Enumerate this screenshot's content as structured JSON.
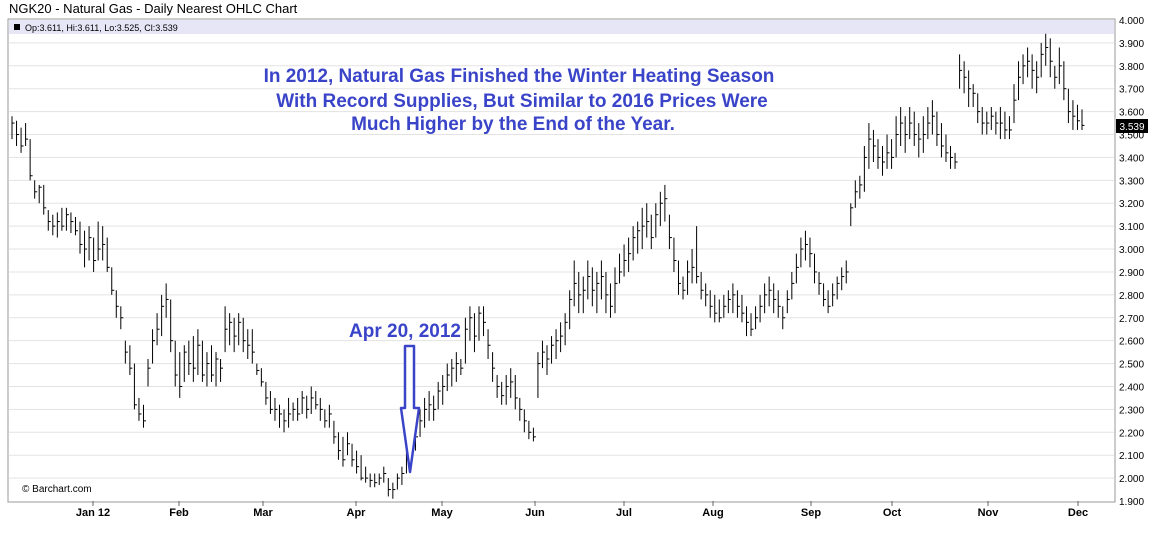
{
  "title": "NGK20 - Natural Gas - Daily Nearest OHLC Chart",
  "ohlc_line": {
    "text": "Op:3.611, Hi:3.611, Lo:3.525, Cl:3.539",
    "marker_icon": "black-square-icon"
  },
  "annotation": {
    "lines": [
      "In 2012, Natural Gas Finished the Winter Heating Season",
      "With Record Supplies, But Similar to 2016 Prices Were",
      "Much Higher by the End of the Year."
    ],
    "color": "#3a44c8"
  },
  "arrow_label": "Apr 20, 2012",
  "arrow_icon": "down-arrow-icon",
  "watermark": "© Barchart.com",
  "last_price_label": "3.539",
  "colors": {
    "bar": "#000000",
    "grid": "#e3e3e3",
    "header_band": "#e6e6f6",
    "annotation": "#3a44c8"
  },
  "chart_data": {
    "type": "ohlc",
    "ylim": [
      1.9,
      4.0
    ],
    "yticks": [
      "1.900",
      "2.000",
      "2.100",
      "2.200",
      "2.300",
      "2.400",
      "2.500",
      "2.600",
      "2.700",
      "2.800",
      "2.900",
      "3.000",
      "3.100",
      "3.200",
      "3.300",
      "3.400",
      "3.500",
      "3.600",
      "3.700",
      "3.800",
      "3.900",
      "4.000"
    ],
    "xlabels": [
      "Jan 12",
      "Feb",
      "Mar",
      "Apr",
      "May",
      "Jun",
      "Jul",
      "Aug",
      "Sep",
      "Oct",
      "Nov",
      "Dec"
    ],
    "bars": [
      [
        3.58,
        3.48,
        3.55
      ],
      [
        3.56,
        3.45,
        3.5
      ],
      [
        3.53,
        3.42,
        3.45
      ],
      [
        3.55,
        3.45,
        3.48
      ],
      [
        3.48,
        3.3,
        3.32
      ],
      [
        3.3,
        3.22,
        3.25
      ],
      [
        3.28,
        3.2,
        3.27
      ],
      [
        3.28,
        3.15,
        3.18
      ],
      [
        3.17,
        3.08,
        3.12
      ],
      [
        3.15,
        3.06,
        3.1
      ],
      [
        3.16,
        3.05,
        3.12
      ],
      [
        3.18,
        3.08,
        3.1
      ],
      [
        3.18,
        3.08,
        3.15
      ],
      [
        3.16,
        3.07,
        3.12
      ],
      [
        3.14,
        3.06,
        3.08
      ],
      [
        3.12,
        2.98,
        3.02
      ],
      [
        3.08,
        2.92,
        3.0
      ],
      [
        3.1,
        2.95,
        3.05
      ],
      [
        3.05,
        2.9,
        2.95
      ],
      [
        3.12,
        2.95,
        3.0
      ],
      [
        3.1,
        2.95,
        3.02
      ],
      [
        3.05,
        2.9,
        2.92
      ],
      [
        2.92,
        2.8,
        2.82
      ],
      [
        2.82,
        2.7,
        2.75
      ],
      [
        2.75,
        2.65,
        2.7
      ],
      [
        2.6,
        2.5,
        2.55
      ],
      [
        2.58,
        2.45,
        2.48
      ],
      [
        2.5,
        2.3,
        2.32
      ],
      [
        2.35,
        2.25,
        2.28
      ],
      [
        2.32,
        2.22,
        2.25
      ],
      [
        2.52,
        2.4,
        2.48
      ],
      [
        2.65,
        2.5,
        2.6
      ],
      [
        2.72,
        2.58,
        2.65
      ],
      [
        2.8,
        2.62,
        2.75
      ],
      [
        2.85,
        2.7,
        2.78
      ],
      [
        2.78,
        2.55,
        2.6
      ],
      [
        2.6,
        2.4,
        2.45
      ],
      [
        2.55,
        2.35,
        2.4
      ],
      [
        2.58,
        2.42,
        2.55
      ],
      [
        2.6,
        2.45,
        2.5
      ],
      [
        2.62,
        2.42,
        2.48
      ],
      [
        2.65,
        2.45,
        2.58
      ],
      [
        2.6,
        2.42,
        2.45
      ],
      [
        2.55,
        2.4,
        2.5
      ],
      [
        2.58,
        2.42,
        2.45
      ],
      [
        2.55,
        2.4,
        2.52
      ],
      [
        2.52,
        2.42,
        2.48
      ],
      [
        2.75,
        2.55,
        2.65
      ],
      [
        2.72,
        2.58,
        2.68
      ],
      [
        2.7,
        2.55,
        2.62
      ],
      [
        2.72,
        2.58,
        2.68
      ],
      [
        2.7,
        2.55,
        2.6
      ],
      [
        2.65,
        2.52,
        2.58
      ],
      [
        2.65,
        2.5,
        2.55
      ],
      [
        2.5,
        2.45,
        2.47
      ],
      [
        2.48,
        2.4,
        2.42
      ],
      [
        2.42,
        2.32,
        2.35
      ],
      [
        2.38,
        2.28,
        2.3
      ],
      [
        2.35,
        2.25,
        2.3
      ],
      [
        2.32,
        2.22,
        2.28
      ],
      [
        2.3,
        2.2,
        2.25
      ],
      [
        2.35,
        2.22,
        2.28
      ],
      [
        2.33,
        2.25,
        2.3
      ],
      [
        2.35,
        2.25,
        2.28
      ],
      [
        2.38,
        2.28,
        2.35
      ],
      [
        2.36,
        2.26,
        2.3
      ],
      [
        2.4,
        2.28,
        2.35
      ],
      [
        2.38,
        2.3,
        2.32
      ],
      [
        2.35,
        2.25,
        2.3
      ],
      [
        2.3,
        2.22,
        2.25
      ],
      [
        2.32,
        2.22,
        2.28
      ],
      [
        2.25,
        2.15,
        2.18
      ],
      [
        2.2,
        2.08,
        2.12
      ],
      [
        2.18,
        2.05,
        2.08
      ],
      [
        2.2,
        2.1,
        2.15
      ],
      [
        2.15,
        2.05,
        2.08
      ],
      [
        2.12,
        2.02,
        2.05
      ],
      [
        2.1,
        1.99,
        2.0
      ],
      [
        2.05,
        1.98,
        2.0
      ],
      [
        2.02,
        1.96,
        1.99
      ],
      [
        2.02,
        1.96,
        1.98
      ],
      [
        2.02,
        1.97,
        2.0
      ],
      [
        2.05,
        1.98,
        2.02
      ],
      [
        2.0,
        1.92,
        1.95
      ],
      [
        1.98,
        1.91,
        1.95
      ],
      [
        2.02,
        1.95,
        2.0
      ],
      [
        2.05,
        1.97,
        2.02
      ],
      [
        2.12,
        2.02,
        2.08
      ],
      [
        2.28,
        2.1,
        2.2
      ],
      [
        2.25,
        2.12,
        2.18
      ],
      [
        2.3,
        2.18,
        2.25
      ],
      [
        2.35,
        2.22,
        2.3
      ],
      [
        2.38,
        2.25,
        2.32
      ],
      [
        2.36,
        2.25,
        2.3
      ],
      [
        2.42,
        2.3,
        2.38
      ],
      [
        2.45,
        2.32,
        2.4
      ],
      [
        2.5,
        2.38,
        2.45
      ],
      [
        2.52,
        2.4,
        2.48
      ],
      [
        2.55,
        2.42,
        2.5
      ],
      [
        2.52,
        2.45,
        2.48
      ],
      [
        2.7,
        2.5,
        2.65
      ],
      [
        2.75,
        2.6,
        2.7
      ],
      [
        2.72,
        2.55,
        2.62
      ],
      [
        2.75,
        2.6,
        2.72
      ],
      [
        2.75,
        2.62,
        2.68
      ],
      [
        2.65,
        2.52,
        2.58
      ],
      [
        2.55,
        2.42,
        2.48
      ],
      [
        2.45,
        2.35,
        2.4
      ],
      [
        2.42,
        2.32,
        2.36
      ],
      [
        2.45,
        2.32,
        2.4
      ],
      [
        2.48,
        2.35,
        2.42
      ],
      [
        2.45,
        2.3,
        2.35
      ],
      [
        2.35,
        2.25,
        2.3
      ],
      [
        2.3,
        2.2,
        2.25
      ],
      [
        2.25,
        2.17,
        2.2
      ],
      [
        2.22,
        2.16,
        2.18
      ],
      [
        2.55,
        2.35,
        2.5
      ],
      [
        2.6,
        2.48,
        2.55
      ],
      [
        2.58,
        2.45,
        2.52
      ],
      [
        2.62,
        2.5,
        2.58
      ],
      [
        2.65,
        2.52,
        2.6
      ],
      [
        2.68,
        2.55,
        2.62
      ],
      [
        2.72,
        2.58,
        2.68
      ],
      [
        2.82,
        2.65,
        2.78
      ],
      [
        2.95,
        2.75,
        2.85
      ],
      [
        2.9,
        2.72,
        2.8
      ],
      [
        2.88,
        2.72,
        2.82
      ],
      [
        2.95,
        2.78,
        2.88
      ],
      [
        2.92,
        2.75,
        2.82
      ],
      [
        2.9,
        2.72,
        2.85
      ],
      [
        2.95,
        2.78,
        2.88
      ],
      [
        2.9,
        2.72,
        2.8
      ],
      [
        2.85,
        2.7,
        2.75
      ],
      [
        2.92,
        2.72,
        2.85
      ],
      [
        2.98,
        2.85,
        2.9
      ],
      [
        3.02,
        2.88,
        2.95
      ],
      [
        3.05,
        2.9,
        2.98
      ],
      [
        3.1,
        2.95,
        3.05
      ],
      [
        3.12,
        2.98,
        3.08
      ],
      [
        3.18,
        3.0,
        3.1
      ],
      [
        3.2,
        3.05,
        3.12
      ],
      [
        3.15,
        3.0,
        3.05
      ],
      [
        3.2,
        3.05,
        3.15
      ],
      [
        3.25,
        3.1,
        3.2
      ],
      [
        3.28,
        3.12,
        3.22
      ],
      [
        3.15,
        3.0,
        3.05
      ],
      [
        3.05,
        2.9,
        2.95
      ],
      [
        2.95,
        2.8,
        2.85
      ],
      [
        2.88,
        2.78,
        2.82
      ],
      [
        2.95,
        2.8,
        2.9
      ],
      [
        3.0,
        2.85,
        2.92
      ],
      [
        3.1,
        2.85,
        2.88
      ],
      [
        2.9,
        2.78,
        2.82
      ],
      [
        2.85,
        2.75,
        2.8
      ],
      [
        2.82,
        2.7,
        2.75
      ],
      [
        2.8,
        2.68,
        2.72
      ],
      [
        2.78,
        2.68,
        2.7
      ],
      [
        2.8,
        2.7,
        2.75
      ],
      [
        2.82,
        2.72,
        2.78
      ],
      [
        2.85,
        2.72,
        2.8
      ],
      [
        2.82,
        2.7,
        2.75
      ],
      [
        2.8,
        2.68,
        2.72
      ],
      [
        2.75,
        2.62,
        2.68
      ],
      [
        2.72,
        2.62,
        2.65
      ],
      [
        2.75,
        2.65,
        2.7
      ],
      [
        2.8,
        2.68,
        2.75
      ],
      [
        2.85,
        2.72,
        2.8
      ],
      [
        2.88,
        2.75,
        2.82
      ],
      [
        2.85,
        2.72,
        2.78
      ],
      [
        2.82,
        2.7,
        2.75
      ],
      [
        2.75,
        2.65,
        2.7
      ],
      [
        2.82,
        2.72,
        2.78
      ],
      [
        2.9,
        2.78,
        2.85
      ],
      [
        2.98,
        2.85,
        2.92
      ],
      [
        3.05,
        2.92,
        3.0
      ],
      [
        3.08,
        2.95,
        3.02
      ],
      [
        3.05,
        2.92,
        2.98
      ],
      [
        2.98,
        2.85,
        2.9
      ],
      [
        2.9,
        2.8,
        2.85
      ],
      [
        2.85,
        2.75,
        2.78
      ],
      [
        2.82,
        2.72,
        2.75
      ],
      [
        2.85,
        2.75,
        2.8
      ],
      [
        2.88,
        2.78,
        2.85
      ],
      [
        2.92,
        2.82,
        2.88
      ],
      [
        2.95,
        2.85,
        2.9
      ],
      [
        3.2,
        3.1,
        3.18
      ],
      [
        3.3,
        3.18,
        3.25
      ],
      [
        3.32,
        3.22,
        3.28
      ],
      [
        3.45,
        3.25,
        3.4
      ],
      [
        3.55,
        3.35,
        3.48
      ],
      [
        3.52,
        3.38,
        3.45
      ],
      [
        3.48,
        3.35,
        3.4
      ],
      [
        3.45,
        3.32,
        3.38
      ],
      [
        3.5,
        3.35,
        3.42
      ],
      [
        3.48,
        3.35,
        3.4
      ],
      [
        3.58,
        3.4,
        3.5
      ],
      [
        3.62,
        3.45,
        3.55
      ],
      [
        3.58,
        3.42,
        3.5
      ],
      [
        3.62,
        3.48,
        3.55
      ],
      [
        3.6,
        3.45,
        3.5
      ],
      [
        3.55,
        3.4,
        3.48
      ],
      [
        3.58,
        3.42,
        3.5
      ],
      [
        3.62,
        3.48,
        3.55
      ],
      [
        3.65,
        3.5,
        3.58
      ],
      [
        3.6,
        3.45,
        3.5
      ],
      [
        3.55,
        3.4,
        3.45
      ],
      [
        3.5,
        3.38,
        3.42
      ],
      [
        3.45,
        3.35,
        3.4
      ],
      [
        3.42,
        3.35,
        3.38
      ],
      [
        3.85,
        3.7,
        3.78
      ],
      [
        3.82,
        3.68,
        3.75
      ],
      [
        3.78,
        3.62,
        3.7
      ],
      [
        3.72,
        3.62,
        3.68
      ],
      [
        3.68,
        3.55,
        3.6
      ],
      [
        3.62,
        3.5,
        3.55
      ],
      [
        3.6,
        3.5,
        3.55
      ],
      [
        3.62,
        3.52,
        3.58
      ],
      [
        3.6,
        3.5,
        3.55
      ],
      [
        3.62,
        3.48,
        3.55
      ],
      [
        3.6,
        3.48,
        3.52
      ],
      [
        3.58,
        3.48,
        3.52
      ],
      [
        3.72,
        3.55,
        3.65
      ],
      [
        3.82,
        3.65,
        3.75
      ],
      [
        3.85,
        3.72,
        3.8
      ],
      [
        3.88,
        3.75,
        3.82
      ],
      [
        3.85,
        3.7,
        3.78
      ],
      [
        3.82,
        3.68,
        3.75
      ],
      [
        3.9,
        3.75,
        3.85
      ],
      [
        3.94,
        3.8,
        3.88
      ],
      [
        3.92,
        3.75,
        3.82
      ],
      [
        3.8,
        3.7,
        3.75
      ],
      [
        3.88,
        3.72,
        3.8
      ],
      [
        3.82,
        3.65,
        3.7
      ],
      [
        3.7,
        3.55,
        3.6
      ],
      [
        3.65,
        3.52,
        3.58
      ],
      [
        3.63,
        3.52,
        3.56
      ],
      [
        3.61,
        3.52,
        3.54
      ]
    ]
  }
}
